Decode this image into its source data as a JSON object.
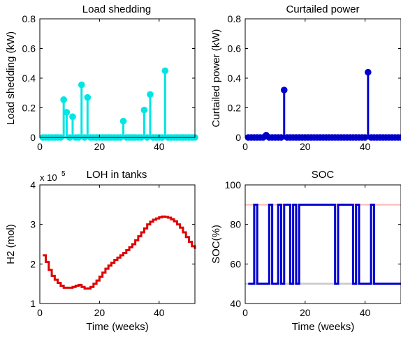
{
  "chart_data": [
    {
      "type": "stem",
      "title": "Load shedding",
      "xlabel": "",
      "ylabel": "Load shedding (kW)",
      "xlim": [
        0,
        52
      ],
      "ylim": [
        0,
        0.8
      ],
      "xticks": [
        0,
        20,
        40
      ],
      "yticks": [
        0,
        0.2,
        0.4,
        0.6,
        0.8
      ],
      "xtick_labels": [
        "0",
        "20",
        "40"
      ],
      "ytick_labels": [
        "0",
        "0.2",
        "0.4",
        "0.6",
        "0.8"
      ],
      "color": "#00e5e5",
      "x": [
        1,
        2,
        3,
        4,
        5,
        6,
        7,
        8,
        9,
        10,
        11,
        12,
        13,
        14,
        15,
        16,
        17,
        18,
        19,
        20,
        21,
        22,
        23,
        24,
        25,
        26,
        27,
        28,
        29,
        30,
        31,
        32,
        33,
        34,
        35,
        36,
        37,
        38,
        39,
        40,
        41,
        42,
        43,
        44,
        45,
        46,
        47,
        48,
        49,
        50,
        51,
        52
      ],
      "values": [
        0,
        0,
        0,
        0,
        0,
        0,
        0,
        0.255,
        0.17,
        0,
        0.14,
        0,
        0,
        0.355,
        0,
        0.27,
        0,
        0,
        0,
        0,
        0,
        0,
        0,
        0,
        0,
        0,
        0,
        0.11,
        0,
        0,
        0,
        0,
        0,
        0,
        0.185,
        0,
        0.29,
        0,
        0,
        0,
        0,
        0.45,
        0,
        0,
        0,
        0,
        0,
        0,
        0,
        0,
        0,
        0
      ]
    },
    {
      "type": "stem",
      "title": "Curtailed power",
      "xlabel": "",
      "ylabel": "Curtailed power (kW)",
      "xlim": [
        0,
        52
      ],
      "ylim": [
        0,
        0.8
      ],
      "xticks": [
        0,
        20,
        40
      ],
      "yticks": [
        0,
        0.2,
        0.4,
        0.6,
        0.8
      ],
      "xtick_labels": [
        "0",
        "20",
        "40"
      ],
      "ytick_labels": [
        "0",
        "0.2",
        "0.4",
        "0.6",
        "0.8"
      ],
      "color": "#0000d0",
      "x": [
        1,
        2,
        3,
        4,
        5,
        6,
        7,
        8,
        9,
        10,
        11,
        12,
        13,
        14,
        15,
        16,
        17,
        18,
        19,
        20,
        21,
        22,
        23,
        24,
        25,
        26,
        27,
        28,
        29,
        30,
        31,
        32,
        33,
        34,
        35,
        36,
        37,
        38,
        39,
        40,
        41,
        42,
        43,
        44,
        45,
        46,
        47,
        48,
        49,
        50,
        51,
        52
      ],
      "values": [
        0,
        0,
        0,
        0,
        0,
        0,
        0.015,
        0,
        0,
        0,
        0,
        0,
        0.32,
        0,
        0,
        0,
        0,
        0,
        0,
        0,
        0,
        0,
        0,
        0,
        0,
        0,
        0,
        0,
        0,
        0,
        0,
        0,
        0,
        0,
        0,
        0,
        0,
        0,
        0,
        0,
        0.44,
        0,
        0,
        0,
        0,
        0,
        0,
        0,
        0,
        0,
        0,
        0
      ]
    },
    {
      "type": "line",
      "step": true,
      "title": "LOH in tanks",
      "xlabel": "Time (weeks)",
      "ylabel": "H2 (mol)",
      "exponent_label": "x 10",
      "exponent_power": "5",
      "xlim": [
        0,
        52
      ],
      "ylim": [
        1,
        4
      ],
      "xticks": [
        0,
        20,
        40
      ],
      "yticks": [
        1,
        2,
        3,
        4
      ],
      "xtick_labels": [
        "0",
        "20",
        "40"
      ],
      "ytick_labels": [
        "1",
        "2",
        "3",
        "4"
      ],
      "color": "#e00000",
      "x": [
        1,
        2,
        3,
        4,
        5,
        6,
        7,
        8,
        9,
        10,
        11,
        12,
        13,
        14,
        15,
        16,
        17,
        18,
        19,
        20,
        21,
        22,
        23,
        24,
        25,
        26,
        27,
        28,
        29,
        30,
        31,
        32,
        33,
        34,
        35,
        36,
        37,
        38,
        39,
        40,
        41,
        42,
        43,
        44,
        45,
        46,
        47,
        48,
        49,
        50,
        51,
        52
      ],
      "values": [
        2.22,
        2.05,
        1.85,
        1.7,
        1.6,
        1.52,
        1.45,
        1.4,
        1.4,
        1.4,
        1.42,
        1.45,
        1.47,
        1.42,
        1.38,
        1.38,
        1.42,
        1.5,
        1.58,
        1.68,
        1.78,
        1.88,
        1.96,
        2.03,
        2.1,
        2.16,
        2.22,
        2.28,
        2.35,
        2.42,
        2.5,
        2.6,
        2.7,
        2.8,
        2.9,
        3.0,
        3.07,
        3.12,
        3.15,
        3.18,
        3.2,
        3.19,
        3.17,
        3.13,
        3.08,
        3.0,
        2.92,
        2.8,
        2.68,
        2.56,
        2.45,
        2.38
      ]
    },
    {
      "type": "line",
      "step": true,
      "title": "SOC",
      "xlabel": "Time (weeks)",
      "ylabel": "SOC(%)",
      "xlim": [
        0,
        52
      ],
      "ylim": [
        40,
        100
      ],
      "xticks": [
        0,
        20,
        40
      ],
      "yticks": [
        40,
        60,
        80,
        100
      ],
      "xtick_labels": [
        "0",
        "20",
        "40"
      ],
      "ytick_labels": [
        "40",
        "60",
        "80",
        "100"
      ],
      "color": "#0000d0",
      "reference_lines": [
        {
          "y": 90,
          "color": "#ffc0c0"
        },
        {
          "y": 50,
          "color": "#c8c8c8"
        }
      ],
      "x": [
        1,
        3,
        4,
        8,
        9,
        11,
        12,
        13,
        15,
        16,
        17,
        18,
        30,
        31,
        36,
        37,
        38,
        42,
        43,
        52
      ],
      "values": [
        50,
        90,
        50,
        90,
        50,
        90,
        50,
        90,
        50,
        90,
        50,
        90,
        50,
        90,
        50,
        90,
        50,
        90,
        50,
        50
      ]
    }
  ]
}
